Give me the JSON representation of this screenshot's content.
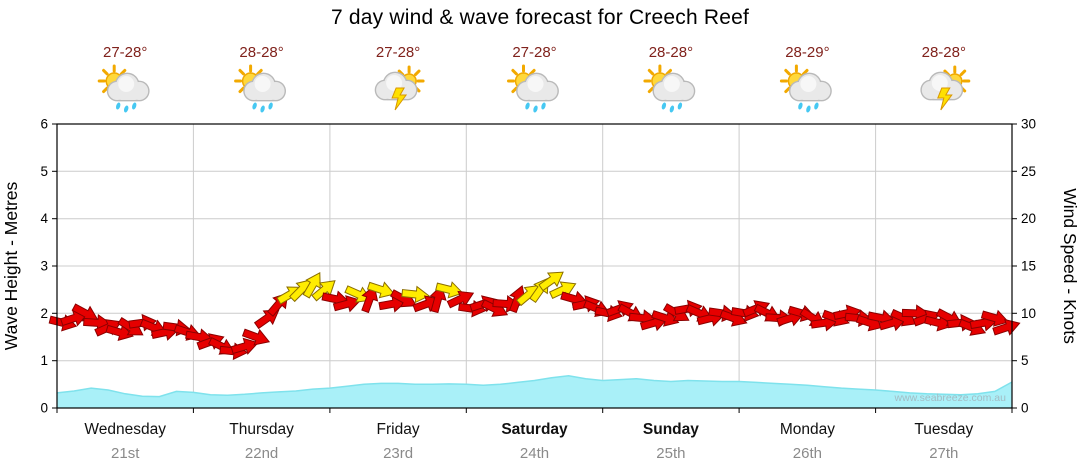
{
  "title": "7 day wind & wave forecast for Creech Reef",
  "watermark": "www.seabreeze.com.au",
  "colors": {
    "wave_fill": "#a9f0f8",
    "wave_line": "#7fe2ec",
    "arrow_red": "#e60000",
    "arrow_outline": "#8b0000",
    "arrow_yellow": "#ffec00",
    "arrow_yellow_outline": "#8a6d00",
    "grid": "#cccccc",
    "axis": "#000000",
    "temp_text": "#80221c",
    "day_text": "#111111",
    "date_text": "#8a8a8a",
    "watermark_text": "#a3bcc4"
  },
  "axes": {
    "left_title": "Wave Height - Metres",
    "right_title": "Wind Speed - Knots",
    "left_ticks": [
      0,
      1,
      2,
      3,
      4,
      5,
      6
    ],
    "right_ticks": [
      0,
      5,
      10,
      15,
      20,
      25,
      30
    ]
  },
  "days": [
    {
      "name": "Wednesday",
      "date": "21st",
      "temp": "27-28°",
      "icon": "sun-shower",
      "bold": false
    },
    {
      "name": "Thursday",
      "date": "22nd",
      "temp": "28-28°",
      "icon": "sun-shower",
      "bold": false
    },
    {
      "name": "Friday",
      "date": "23rd",
      "temp": "27-28°",
      "icon": "thunderstorm",
      "bold": false
    },
    {
      "name": "Saturday",
      "date": "24th",
      "temp": "27-28°",
      "icon": "sun-shower",
      "bold": true
    },
    {
      "name": "Sunday",
      "date": "25th",
      "temp": "28-28°",
      "icon": "sun-shower",
      "bold": true
    },
    {
      "name": "Monday",
      "date": "26th",
      "temp": "28-29°",
      "icon": "sun-shower",
      "bold": false
    },
    {
      "name": "Tuesday",
      "date": "27th",
      "temp": "28-28°",
      "icon": "thunderstorm",
      "bold": false
    }
  ],
  "chart_data": {
    "type": "area+wind-arrows",
    "title": "7 day wind & wave forecast for Creech Reef",
    "x_unit": "days",
    "x_range": [
      0,
      7
    ],
    "left_ylabel": "Wave Height - Metres",
    "right_ylabel": "Wind Speed - Knots",
    "left_ylim": [
      0,
      6
    ],
    "right_ylim": [
      0,
      30
    ],
    "grid": true,
    "wave_height_m": {
      "step_days": 0.125,
      "values": [
        0.32,
        0.36,
        0.42,
        0.38,
        0.3,
        0.25,
        0.24,
        0.35,
        0.33,
        0.28,
        0.27,
        0.29,
        0.32,
        0.34,
        0.36,
        0.4,
        0.42,
        0.46,
        0.5,
        0.52,
        0.52,
        0.5,
        0.5,
        0.51,
        0.5,
        0.48,
        0.5,
        0.54,
        0.58,
        0.64,
        0.68,
        0.62,
        0.58,
        0.6,
        0.62,
        0.58,
        0.56,
        0.58,
        0.57,
        0.56,
        0.56,
        0.54,
        0.52,
        0.5,
        0.48,
        0.45,
        0.42,
        0.4,
        0.38,
        0.35,
        0.32,
        0.3,
        0.29,
        0.28,
        0.3,
        0.35,
        0.55
      ]
    },
    "wind_knots": {
      "interval_hours": 2,
      "strong_threshold": 12,
      "speeds": [
        9,
        9.5,
        10,
        9,
        8.5,
        8,
        8.5,
        9,
        8.5,
        8,
        8.5,
        8,
        7.5,
        7,
        6.5,
        6,
        6.5,
        7.5,
        9.5,
        11,
        12,
        12.5,
        13,
        12.5,
        11.5,
        11,
        12,
        11.5,
        12.5,
        11,
        11.5,
        12,
        11,
        11.5,
        12.5,
        11.5,
        10.5,
        11,
        10.5,
        11,
        11.5,
        12,
        12.5,
        13.5,
        12.5,
        11.5,
        11,
        10.5,
        10,
        10.5,
        10,
        9.5,
        9,
        9.5,
        10,
        10.5,
        10,
        9.5,
        10,
        9.5,
        10,
        10.5,
        10,
        9.5,
        9.5,
        10,
        9.5,
        9,
        9.5,
        10,
        9.5,
        9,
        9.5,
        9,
        9.5,
        10,
        9.5,
        9,
        9.5,
        9,
        8.5,
        9,
        9.5,
        8.5
      ],
      "angles_deg": [
        14,
        -18,
        28,
        4,
        -24,
        16,
        32,
        -8,
        22,
        -12,
        8,
        18,
        10,
        -20,
        26,
        6,
        -16,
        20,
        -35,
        -50,
        -30,
        -45,
        -60,
        -40,
        12,
        -15,
        24,
        -70,
        18,
        -10,
        28,
        6,
        -20,
        -75,
        14,
        -25,
        8,
        -18,
        26,
        4,
        -70,
        -40,
        -55,
        -35,
        -25,
        16,
        -12,
        22,
        12,
        -20,
        28,
        6,
        -16,
        18,
        30,
        -10,
        24,
        -14,
        8,
        20,
        10,
        -22,
        26,
        4,
        -18,
        16,
        32,
        -8,
        20,
        -12,
        6,
        18,
        12,
        -16,
        24,
        2,
        -20,
        14,
        28,
        -6,
        22,
        -10,
        16,
        -18
      ]
    }
  }
}
